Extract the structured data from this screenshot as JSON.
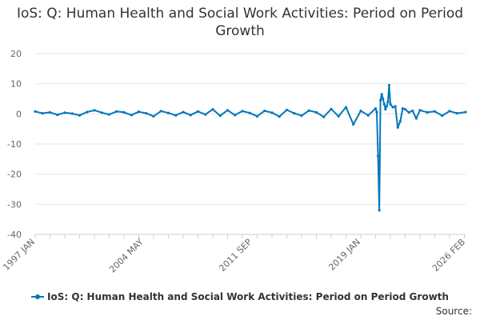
{
  "chart_data": {
    "type": "line",
    "title": "IoS: Q: Human Health and Social Work Activities: Period on Period Growth",
    "xlabel": "",
    "ylabel": "",
    "ylim": [
      -40,
      20
    ],
    "y_ticks": [
      20,
      10,
      0,
      -10,
      -20,
      -30,
      -40
    ],
    "x_tick_labels": [
      "1997 JAN",
      "2004 MAY",
      "2011 SEP",
      "2019 JAN",
      "2026 FEB"
    ],
    "x_range": [
      "1997 JAN",
      "2026 FEB"
    ],
    "grid": "horizontal",
    "legend": "bottom",
    "series": [
      {
        "name": "IoS: Q: Human Health and Social Work Activities: Period on Period Growth",
        "color": "#0077bb",
        "x": [
          "1997 JAN",
          "1997 JUL",
          "1998 JAN",
          "1998 JUL",
          "1999 JAN",
          "1999 JUL",
          "2000 JAN",
          "2000 JUL",
          "2001 JAN",
          "2001 JUL",
          "2002 JAN",
          "2002 JUL",
          "2003 JAN",
          "2003 JUL",
          "2004 JAN",
          "2004 JUL",
          "2005 JAN",
          "2005 JUL",
          "2006 JAN",
          "2006 JUL",
          "2007 JAN",
          "2007 JUL",
          "2008 JAN",
          "2008 JUL",
          "2009 JAN",
          "2009 JUL",
          "2010 JAN",
          "2010 JUL",
          "2011 JAN",
          "2011 JUL",
          "2012 JAN",
          "2012 JUL",
          "2013 JAN",
          "2013 JUL",
          "2014 JAN",
          "2014 JUL",
          "2015 JAN",
          "2015 JUL",
          "2016 JAN",
          "2016 JUL",
          "2017 JAN",
          "2017 JUL",
          "2018 JAN",
          "2018 JUL",
          "2019 JAN",
          "2019 JUL",
          "2020 JAN",
          "2020 FEB",
          "2020 MAR",
          "2020 APR",
          "2020 MAY",
          "2020 JUN",
          "2020 JUL",
          "2020 AUG",
          "2020 SEP",
          "2020 OCT",
          "2020 NOV",
          "2020 DEC",
          "2021 JAN",
          "2021 MAR",
          "2021 MAY",
          "2021 JUL",
          "2021 SEP",
          "2021 NOV",
          "2022 JAN",
          "2022 APR",
          "2022 JUL",
          "2022 OCT",
          "2023 JAN",
          "2023 JUL",
          "2024 JAN",
          "2024 JUL",
          "2025 JAN",
          "2025 JUL",
          "2026 FEB"
        ],
        "values": [
          0.8,
          0.2,
          0.5,
          -0.3,
          0.4,
          0.1,
          -0.5,
          0.6,
          1.2,
          0.4,
          -0.2,
          0.8,
          0.5,
          -0.4,
          0.7,
          0.2,
          -0.8,
          0.9,
          0.3,
          -0.5,
          0.6,
          -0.4,
          0.8,
          -0.2,
          1.5,
          -0.6,
          1.2,
          -0.4,
          0.9,
          0.3,
          -0.8,
          1.0,
          0.4,
          -0.9,
          1.3,
          0.2,
          -0.6,
          1.1,
          0.5,
          -1.0,
          1.6,
          -0.8,
          2.2,
          -3.5,
          1.0,
          -0.5,
          1.8,
          0.6,
          -14.0,
          -32.0,
          4.5,
          6.5,
          5.0,
          3.2,
          1.5,
          2.5,
          4.0,
          9.5,
          3.2,
          2.2,
          2.5,
          -4.5,
          -2.5,
          1.8,
          1.5,
          0.5,
          1.0,
          -1.5,
          1.2,
          0.5,
          0.8,
          -0.6,
          0.9,
          0.2,
          0.6
        ]
      }
    ]
  },
  "source_label": "Source:"
}
